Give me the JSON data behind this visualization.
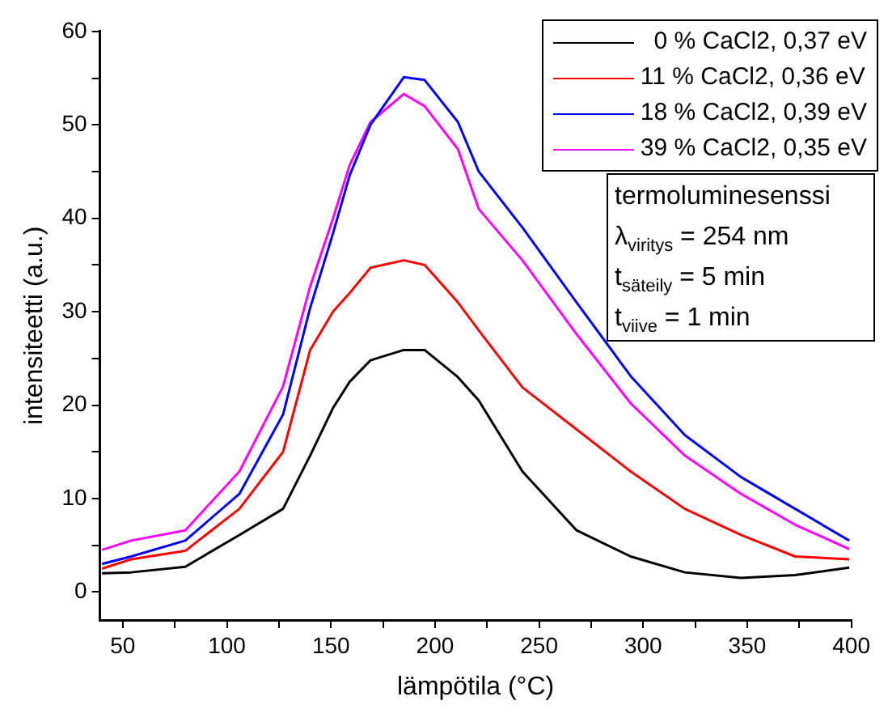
{
  "chart_data": {
    "type": "line",
    "xlabel": "lämpötila (°C)",
    "ylabel": "intensiteetti (a.u.)",
    "x": [
      40,
      54,
      80,
      106,
      127,
      140,
      151,
      159,
      169,
      185,
      195,
      211,
      221,
      242,
      268,
      294,
      320,
      347,
      373,
      399
    ],
    "series": [
      {
        "name": "  0 % CaCl2, 0,37 eV",
        "color": "#000000",
        "values": [
          2,
          2.1,
          2.7,
          6.1,
          8.9,
          14.6,
          19.7,
          22.5,
          24.8,
          25.9,
          25.9,
          23,
          20.5,
          12.9,
          6.6,
          3.8,
          2.1,
          1.5,
          1.8,
          2.6
        ]
      },
      {
        "name": "11 % CaCl2, 0,36 eV",
        "color": "#ff0000",
        "values": [
          2.5,
          3.5,
          4.4,
          8.9,
          15,
          25.9,
          30,
          32,
          34.7,
          35.5,
          35,
          31,
          28,
          21.9,
          17.4,
          12.9,
          8.9,
          6.1,
          3.8,
          3.5
        ]
      },
      {
        "name": "18 % CaCl2, 0,39 eV",
        "color": "#0000ff",
        "values": [
          3,
          3.8,
          5.5,
          10.5,
          19,
          30.4,
          38.4,
          44.6,
          50,
          55.1,
          54.8,
          50.3,
          45,
          39,
          31,
          23.1,
          16.8,
          12.3,
          8.9,
          5.5
        ]
      },
      {
        "name": "39 % CaCl2, 0,35 eV",
        "color": "#ff00ff",
        "values": [
          4.5,
          5.5,
          6.6,
          12.9,
          22,
          32.7,
          40,
          45.7,
          50.3,
          53.3,
          52,
          47.4,
          41,
          35.5,
          27.6,
          20.2,
          14.6,
          10.5,
          7.2,
          4.6
        ]
      }
    ],
    "xlim": [
      39,
      400
    ],
    "xticks": [
      50,
      {
        "value": 75,
        "label": null
      },
      100,
      {
        "value": 125,
        "label": null
      },
      150,
      {
        "value": 175,
        "label": null
      },
      200,
      {
        "value": 225,
        "label": null
      },
      250,
      {
        "value": 275,
        "label": null
      },
      300,
      {
        "value": 325,
        "label": null
      },
      350,
      {
        "value": 375,
        "label": null
      },
      400
    ],
    "ylim": [
      -3,
      60
    ],
    "yticks": [
      0,
      {
        "value": 5,
        "label": null
      },
      10,
      {
        "value": 15,
        "label": null
      },
      20,
      {
        "value": 25,
        "label": null
      },
      30,
      {
        "value": 35,
        "label": null
      },
      40,
      {
        "value": 45,
        "label": null
      },
      50,
      {
        "value": 55,
        "label": null
      },
      60
    ],
    "grid": false,
    "legend": "top right",
    "marker": "none",
    "line_style": "solid",
    "annotations": [
      "termoluminesenssi",
      "λ$_{viritys}$ = 254 nm",
      "t$_{säteily}$ = 5 min",
      "t$_{viive}$ = 1 min"
    ]
  }
}
